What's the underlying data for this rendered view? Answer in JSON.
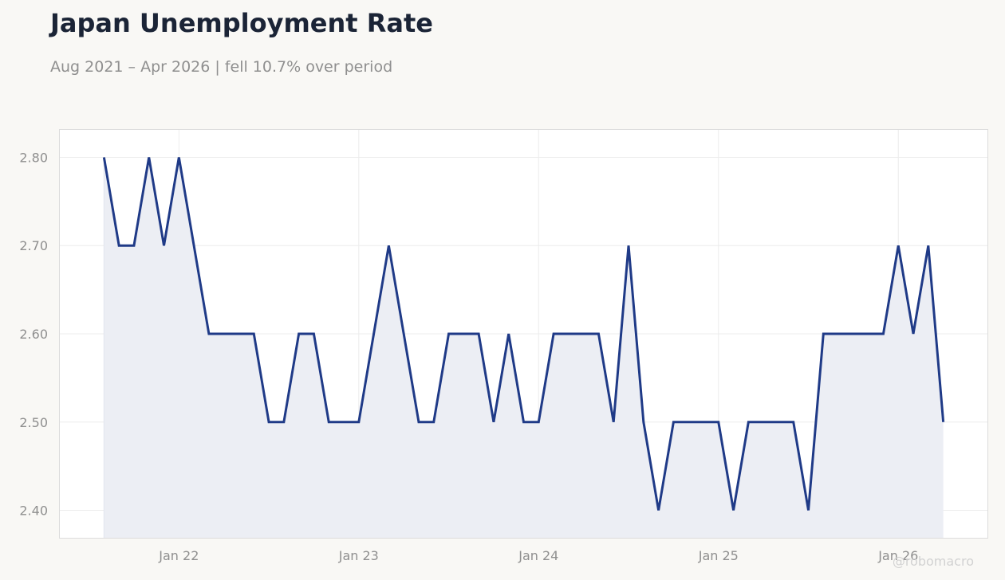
{
  "chart_data": {
    "type": "line",
    "title": "Japan Unemployment Rate",
    "subtitle": "Aug 2021 – Apr 2026 | fell 10.7% over period",
    "xlabel": "",
    "ylabel": "",
    "x_tick_labels": [
      "Jan 22",
      "Jan 23",
      "Jan 24",
      "Jan 25",
      "Jan 26"
    ],
    "y_tick_labels": [
      "2.40",
      "2.50",
      "2.60",
      "2.70",
      "2.80"
    ],
    "y_ticks": [
      2.4,
      2.5,
      2.6,
      2.7,
      2.8
    ],
    "ylim": [
      2.368,
      2.832
    ],
    "xlim": [
      "2021-05",
      "2026-07"
    ],
    "grid": true,
    "legend": "none",
    "series": [
      {
        "x": [
          "2021-08",
          "2021-09",
          "2021-10",
          "2021-11",
          "2021-12",
          "2022-01",
          "2022-02",
          "2022-03",
          "2022-04",
          "2022-05",
          "2022-06",
          "2022-07",
          "2022-08",
          "2022-09",
          "2022-10",
          "2022-11",
          "2022-12",
          "2023-01",
          "2023-02",
          "2023-03",
          "2023-04",
          "2023-05",
          "2023-06",
          "2023-07",
          "2023-08",
          "2023-09",
          "2023-10",
          "2023-11",
          "2023-12",
          "2024-01",
          "2024-02",
          "2024-03",
          "2024-04",
          "2024-05",
          "2024-06",
          "2024-07",
          "2024-08",
          "2024-09",
          "2024-10",
          "2024-11",
          "2024-12",
          "2025-01",
          "2025-02",
          "2025-03",
          "2025-04",
          "2025-05",
          "2025-06",
          "2025-07",
          "2025-08",
          "2025-09",
          "2025-10",
          "2025-11",
          "2025-12",
          "2026-01",
          "2026-02",
          "2026-03",
          "2026-04"
        ],
        "values": [
          2.8,
          2.7,
          2.7,
          2.8,
          2.7,
          2.8,
          2.7,
          2.6,
          2.6,
          2.6,
          2.6,
          2.5,
          2.5,
          2.6,
          2.6,
          2.5,
          2.5,
          2.5,
          2.6,
          2.7,
          2.6,
          2.5,
          2.5,
          2.6,
          2.6,
          2.6,
          2.5,
          2.6,
          2.5,
          2.5,
          2.6,
          2.6,
          2.6,
          2.6,
          2.5,
          2.7,
          2.5,
          2.4,
          2.5,
          2.5,
          2.5,
          2.5,
          2.4,
          2.5,
          2.5,
          2.5,
          2.5,
          2.4,
          2.6,
          2.6,
          2.6,
          2.6,
          2.6,
          2.7,
          2.6,
          2.7,
          2.5
        ]
      }
    ],
    "colors": {
      "line": "#1f3a87",
      "fill": "#eceef4",
      "grid": "#ececec",
      "axis_frame": "#dcdcdc",
      "title": "#1b2436",
      "muted": "#8f8f8f",
      "background": "#f9f8f5",
      "plot_bg": "#ffffff"
    },
    "watermark": "@robomacro"
  }
}
